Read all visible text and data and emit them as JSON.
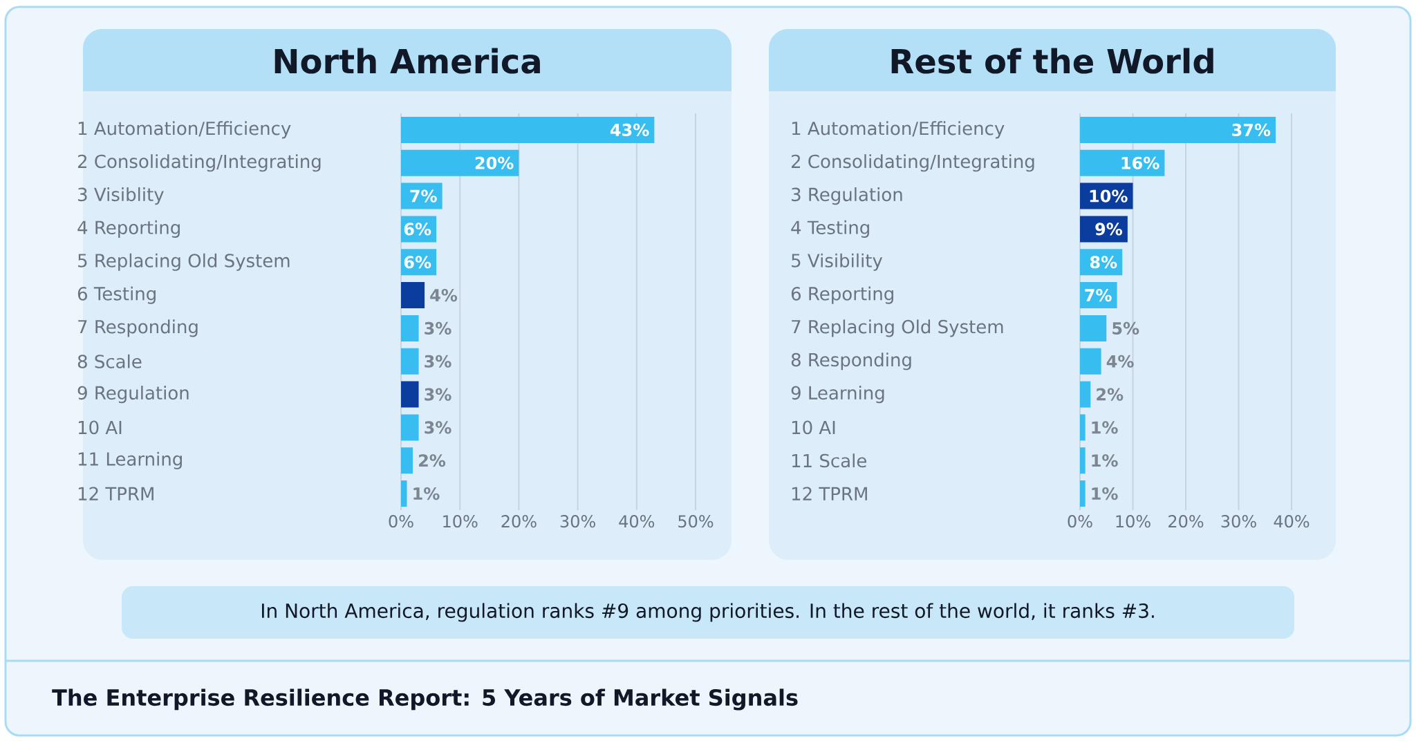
{
  "chart_data": [
    {
      "type": "bar",
      "orientation": "horizontal",
      "title": "North America",
      "categories": [
        "1 Automation/Efficiency",
        "2 Consolidating/Integrating",
        "3 Visiblity",
        "4 Reporting",
        "5 Replacing Old System",
        "6 Testing",
        "7 Responding",
        "8 Scale",
        "9 Regulation",
        "10 AI",
        "11 Learning",
        "12 TPRM"
      ],
      "values": [
        43,
        20,
        7,
        6,
        6,
        4,
        3,
        3,
        3,
        3,
        2,
        1
      ],
      "value_labels": [
        "43%",
        "20%",
        "7%",
        "6%",
        "6%",
        "4%",
        "3%",
        "3%",
        "3%",
        "3%",
        "2%",
        "1%"
      ],
      "colors": [
        "#38bdf0",
        "#38bdf0",
        "#38bdf0",
        "#38bdf0",
        "#38bdf0",
        "#0a3d9e",
        "#38bdf0",
        "#38bdf0",
        "#0a3d9e",
        "#38bdf0",
        "#38bdf0",
        "#38bdf0"
      ],
      "xlim": [
        0,
        50
      ],
      "xticks": [
        {
          "value": 0,
          "label": "0%"
        },
        {
          "value": 10,
          "label": "10%"
        },
        {
          "value": 20,
          "label": "20%"
        },
        {
          "value": 30,
          "label": "30%"
        },
        {
          "value": 40,
          "label": "40%"
        },
        {
          "value": 50,
          "label": "50%"
        }
      ],
      "grid": "x",
      "annotations": [
        "In North America, regulation ranks #9 among priorities. In the rest of the world, it ranks #3.",
        "The Enterprise Resilience Report: 5 Years of Market Signals"
      ]
    },
    {
      "type": "bar",
      "orientation": "horizontal",
      "title": "Rest of the World",
      "categories": [
        "1 Automation/Efficiency",
        "2 Consolidating/Integrating",
        "3 Regulation",
        "4 Testing",
        "5 Visibility",
        "6 Reporting",
        "7 Replacing Old System",
        "8 Responding",
        "9 Learning",
        "10 AI",
        "11 Scale",
        "12 TPRM"
      ],
      "values": [
        37,
        16,
        10,
        9,
        8,
        7,
        5,
        4,
        2,
        1,
        1,
        1
      ],
      "value_labels": [
        "37%",
        "16%",
        "10%",
        "9%",
        "8%",
        "7%",
        "5%",
        "4%",
        "2%",
        "1%",
        "1%",
        "1%"
      ],
      "colors": [
        "#38bdf0",
        "#38bdf0",
        "#0a3d9e",
        "#0a3d9e",
        "#38bdf0",
        "#38bdf0",
        "#38bdf0",
        "#38bdf0",
        "#38bdf0",
        "#38bdf0",
        "#38bdf0",
        "#38bdf0"
      ],
      "xlim": [
        0,
        40
      ],
      "xticks": [
        {
          "value": 0,
          "label": "0%"
        },
        {
          "value": 10,
          "label": "10%"
        },
        {
          "value": 20,
          "label": "20%"
        },
        {
          "value": 30,
          "label": "30%"
        },
        {
          "value": 40,
          "label": "40%"
        }
      ],
      "grid": "x"
    }
  ]
}
